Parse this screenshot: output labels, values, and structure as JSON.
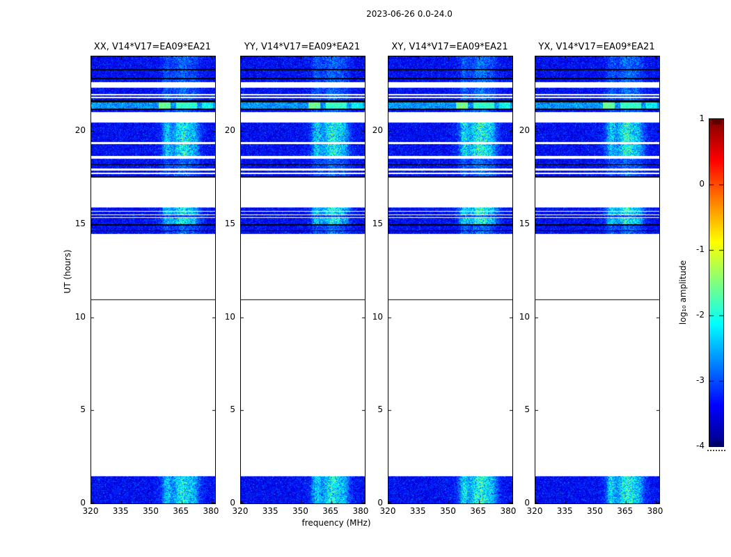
{
  "figure": {
    "title": "2023-06-26 0.0-24.0"
  },
  "panels": [
    {
      "title": "XX, V14*V17=EA09*EA21"
    },
    {
      "title": "YY, V14*V17=EA09*EA21"
    },
    {
      "title": "XY, V14*V17=EA09*EA21"
    },
    {
      "title": "YX, V14*V17=EA09*EA21"
    }
  ],
  "axes": {
    "xlabel": "frequency (MHz)",
    "ylabel": "UT (hours)",
    "x_ticks": [
      320,
      335,
      350,
      365,
      380
    ],
    "y_ticks": [
      0,
      5,
      10,
      15,
      20
    ],
    "x_range": [
      320,
      381.7
    ],
    "y_range": [
      0,
      24
    ]
  },
  "colorbar": {
    "label": "log₁₀ amplitude",
    "ticks": [
      1,
      0,
      -1,
      -2,
      -3,
      -4
    ],
    "range": [
      -4,
      1
    ],
    "colormap": "jet"
  },
  "colors": {
    "background": "#ffffff",
    "text": "#000000",
    "axis": "#000000",
    "spectro_base_blue": "#0000b4",
    "spectro_streak_cyan": "#00e0ff",
    "spectro_bright_green": "#46e05a",
    "cbar_top": "#800000",
    "cbar_bottom": "#000080"
  },
  "chart_data": {
    "type": "heatmap",
    "title": "2023-06-26 0.0-24.0",
    "panels": [
      "XX, V14*V17=EA09*EA21",
      "YY, V14*V17=EA09*EA21",
      "XY, V14*V17=EA09*EA21",
      "YX, V14*V17=EA09*EA21"
    ],
    "xlabel": "frequency (MHz)",
    "ylabel": "UT (hours)",
    "x_ticks": [
      320,
      335,
      350,
      365,
      380
    ],
    "y_ticks": [
      0,
      5,
      10,
      15,
      20
    ],
    "x_range_mhz": [
      320,
      381.7
    ],
    "y_range_hours": [
      0,
      24
    ],
    "value_label": "log₁₀ amplitude",
    "value_range": [
      -4,
      1
    ],
    "colormap": "jet",
    "no_data": "white gaps between observation scans",
    "rfi_streaks_mhz": [
      {
        "center": 357.5,
        "sigma": 1.6,
        "amp": 1.0
      },
      {
        "center": 365.5,
        "sigma": 3.2,
        "amp": 1.25
      },
      {
        "center": 371.5,
        "sigma": 2.0,
        "amp": 0.65
      },
      {
        "center": 364.0,
        "sigma": 6.5,
        "amp": 0.5
      }
    ],
    "kinds": {
      "data": "blue noise near log10 amp -3.7",
      "data+": "blue noise with strong RFI streaks 356-372 MHz",
      "bright": "rows with green/cyan RFI patches above 353 MHz",
      "black": "black horizontal line/band",
      "white": "no data"
    },
    "band_format": [
      "ut_top_hours",
      "ut_bottom_hours",
      "kind"
    ],
    "bands": [
      [
        24.0,
        23.33,
        "data"
      ],
      [
        23.33,
        23.27,
        "black"
      ],
      [
        23.27,
        22.84,
        "data"
      ],
      [
        22.84,
        22.76,
        "black"
      ],
      [
        22.76,
        22.62,
        "data"
      ],
      [
        22.62,
        22.32,
        "white"
      ],
      [
        22.32,
        21.97,
        "data"
      ],
      [
        21.97,
        21.91,
        "white"
      ],
      [
        21.91,
        21.82,
        "data"
      ],
      [
        21.82,
        21.76,
        "white"
      ],
      [
        21.76,
        21.66,
        "data"
      ],
      [
        21.66,
        21.54,
        "black"
      ],
      [
        21.54,
        21.21,
        "bright"
      ],
      [
        21.21,
        21.12,
        "black"
      ],
      [
        21.12,
        21.0,
        "data"
      ],
      [
        21.0,
        20.45,
        "white"
      ],
      [
        20.45,
        19.4,
        "data+"
      ],
      [
        19.4,
        19.3,
        "white"
      ],
      [
        19.3,
        18.66,
        "data+"
      ],
      [
        18.66,
        18.51,
        "white"
      ],
      [
        18.51,
        18.22,
        "data"
      ],
      [
        18.22,
        18.17,
        "black"
      ],
      [
        18.17,
        17.98,
        "data"
      ],
      [
        17.98,
        17.88,
        "white"
      ],
      [
        17.88,
        17.77,
        "data"
      ],
      [
        17.77,
        17.69,
        "white"
      ],
      [
        17.69,
        17.58,
        "data"
      ],
      [
        17.58,
        17.51,
        "black"
      ],
      [
        17.51,
        15.89,
        "white"
      ],
      [
        15.89,
        15.7,
        "data+"
      ],
      [
        15.7,
        15.66,
        "white"
      ],
      [
        15.66,
        15.52,
        "data+"
      ],
      [
        15.52,
        15.47,
        "white"
      ],
      [
        15.47,
        15.38,
        "data"
      ],
      [
        15.38,
        15.32,
        "white"
      ],
      [
        15.32,
        15.0,
        "data+"
      ],
      [
        15.0,
        14.93,
        "black"
      ],
      [
        14.93,
        14.66,
        "data"
      ],
      [
        14.66,
        14.62,
        "black"
      ],
      [
        14.62,
        14.47,
        "data"
      ],
      [
        14.47,
        10.94,
        "white"
      ],
      [
        10.94,
        10.9,
        "black"
      ],
      [
        10.9,
        1.46,
        "white"
      ],
      [
        1.46,
        0.0,
        "data+"
      ]
    ]
  }
}
